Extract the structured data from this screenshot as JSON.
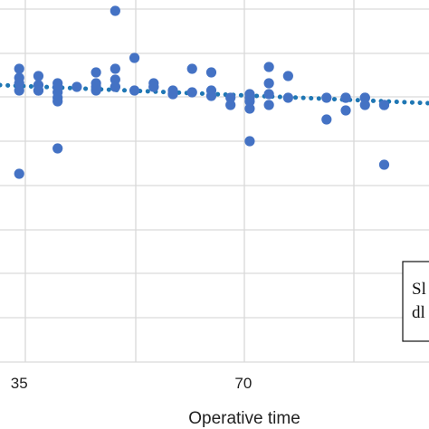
{
  "chart_data": {
    "type": "scatter",
    "title": "",
    "xlabel": "Operative time",
    "ylabel": "",
    "x_ticks": [
      35,
      70
    ],
    "xlim": [
      32,
      99
    ],
    "ylim": [
      0,
      100
    ],
    "grid": true,
    "colors": {
      "points": "#4472c4",
      "trendline": "#1f77b4",
      "grid": "#d9d9d9"
    },
    "legend_position": "bottom-right",
    "legend_lines": [
      "Sl",
      "dl"
    ],
    "series": [
      {
        "x": [
          35,
          35,
          35,
          35,
          35,
          38,
          38,
          38,
          38,
          41,
          41,
          41,
          41,
          41,
          41,
          44,
          47,
          47,
          47,
          47,
          50,
          50,
          50,
          50,
          50,
          53,
          53,
          56,
          56,
          56,
          59,
          59,
          59,
          62,
          62,
          65,
          65,
          65,
          68,
          68,
          71,
          71,
          71,
          71,
          71,
          74,
          74,
          74,
          74,
          77,
          77,
          83,
          83,
          86,
          86,
          86,
          89,
          89,
          89,
          92,
          92,
          92
        ],
        "y": [
          81,
          78.5,
          77,
          75,
          52,
          79,
          76.5,
          75,
          75,
          77,
          76,
          74.5,
          73,
          72,
          59,
          76,
          80,
          77,
          76,
          75,
          97,
          81,
          78,
          76,
          76,
          84,
          75,
          77,
          76,
          76,
          75,
          74,
          74,
          81,
          74.5,
          80,
          75,
          73.5,
          73,
          71,
          74,
          73,
          72,
          70,
          61,
          81.5,
          77,
          74,
          71,
          79,
          73,
          67,
          73,
          73,
          73,
          69.5,
          73,
          73,
          71,
          54.5,
          71,
          71
        ]
      }
    ],
    "trendline": {
      "style": "dotted",
      "x": [
        32,
        99
      ],
      "y": [
        76.5,
        71.5
      ]
    }
  }
}
